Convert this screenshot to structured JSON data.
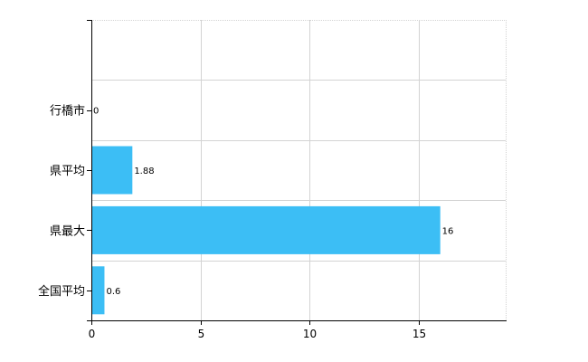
{
  "chart_data": {
    "type": "bar",
    "orientation": "horizontal",
    "categories": [
      "行橋市",
      "県平均",
      "県最大",
      "全国平均"
    ],
    "values": [
      0,
      1.88,
      16,
      0.6
    ],
    "data_labels": [
      "0",
      "1.88",
      "16",
      "0.6"
    ],
    "xlim": [
      0,
      19
    ],
    "x_ticks": [
      0,
      5,
      10,
      15
    ],
    "x_tick_labels": [
      "0",
      "5",
      "10",
      "15"
    ],
    "grid": true,
    "legend": "none",
    "title": "",
    "xlabel": "",
    "ylabel": "",
    "colors": {
      "bar": "#3cbef5",
      "grid": "#d3d3d3",
      "axis": "#000000"
    }
  }
}
